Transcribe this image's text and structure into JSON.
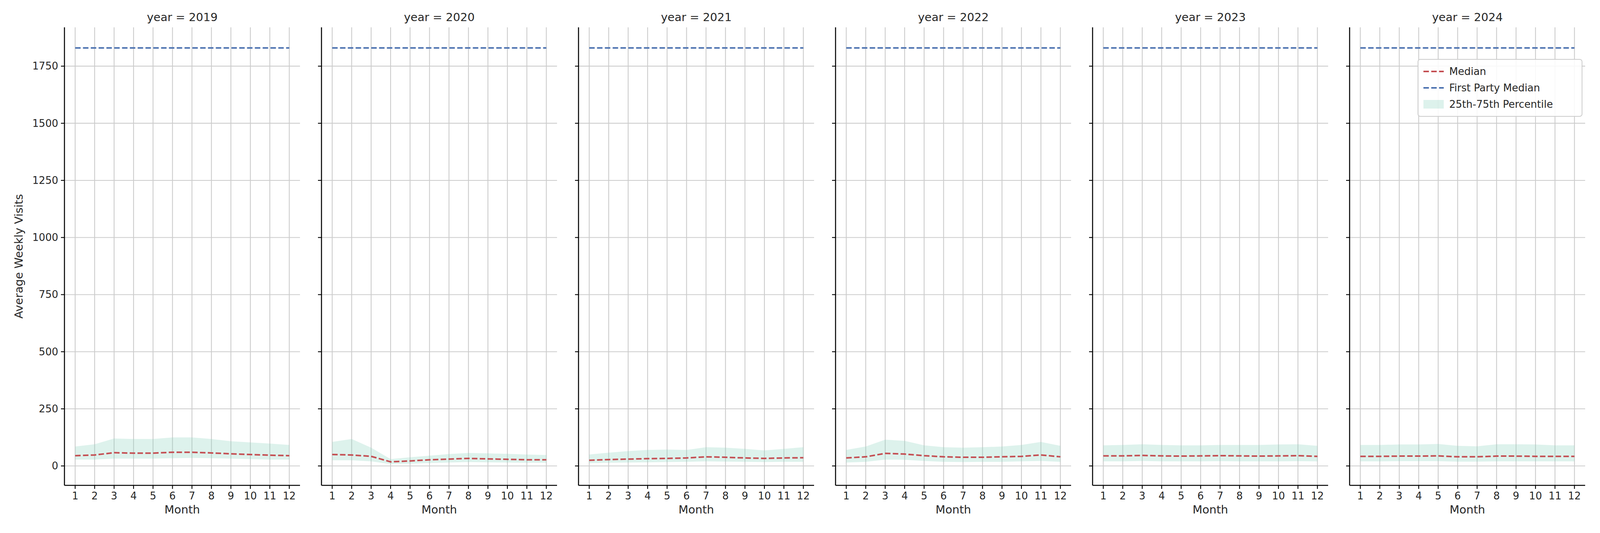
{
  "chart_data": [
    {
      "type": "line",
      "title": "year = 2019",
      "xlabel": "Month",
      "ylabel": "Average Weekly Visits",
      "x": [
        1,
        2,
        3,
        4,
        5,
        6,
        7,
        8,
        9,
        10,
        11,
        12
      ],
      "xlim": [
        0.45,
        12.55
      ],
      "xticks": [
        1,
        2,
        3,
        4,
        5,
        6,
        7,
        8,
        9,
        10,
        11,
        12
      ],
      "ylim": [
        -85,
        1920
      ],
      "yticks": [
        0,
        250,
        500,
        750,
        1000,
        1250,
        1500,
        1750
      ],
      "grid": true,
      "series": [
        {
          "name": "Median",
          "type": "line",
          "line_style": "dashed",
          "color": "#c44e52",
          "values": [
            45,
            48,
            58,
            56,
            56,
            60,
            60,
            57,
            53,
            50,
            47,
            45
          ]
        },
        {
          "name": "First Party Median",
          "type": "line",
          "line_style": "dashed",
          "color": "#4c72b0",
          "values": [
            1830,
            1830,
            1830,
            1830,
            1830,
            1830,
            1830,
            1830,
            1830,
            1830,
            1830,
            1830
          ]
        },
        {
          "name": "25th-75th Percentile",
          "type": "band",
          "color": "#8fd3c0",
          "lower": [
            28,
            28,
            32,
            32,
            32,
            34,
            35,
            34,
            32,
            30,
            28,
            28
          ],
          "upper": [
            85,
            95,
            120,
            118,
            118,
            125,
            125,
            118,
            108,
            103,
            98,
            92
          ]
        }
      ]
    },
    {
      "type": "line",
      "title": "year = 2020",
      "xlabel": "Month",
      "tick_labels": "x",
      "x": [
        1,
        2,
        3,
        4,
        5,
        6,
        7,
        8,
        9,
        10,
        11,
        12
      ],
      "xlim": [
        0.45,
        12.55
      ],
      "xticks": [
        1,
        2,
        3,
        4,
        5,
        6,
        7,
        8,
        9,
        10,
        11,
        12
      ],
      "ylim": [
        -85,
        1920
      ],
      "yticks": [
        0,
        250,
        500,
        750,
        1000,
        1250,
        1500,
        1750
      ],
      "grid": true,
      "series": [
        {
          "name": "Median",
          "type": "line",
          "line_style": "dashed",
          "color": "#c44e52",
          "values": [
            50,
            48,
            42,
            18,
            22,
            27,
            30,
            33,
            31,
            29,
            27,
            27
          ]
        },
        {
          "name": "First Party Median",
          "type": "line",
          "line_style": "dashed",
          "color": "#4c72b0",
          "values": [
            1830,
            1830,
            1830,
            1830,
            1830,
            1830,
            1830,
            1830,
            1830,
            1830,
            1830,
            1830
          ]
        },
        {
          "name": "25th-75th Percentile",
          "type": "band",
          "color": "#8fd3c0",
          "lower": [
            25,
            25,
            20,
            8,
            10,
            13,
            15,
            17,
            16,
            15,
            14,
            14
          ],
          "upper": [
            105,
            118,
            80,
            30,
            38,
            45,
            52,
            57,
            55,
            53,
            50,
            48
          ]
        }
      ]
    },
    {
      "type": "line",
      "title": "year = 2021",
      "xlabel": "Month",
      "tick_labels": "x",
      "x": [
        1,
        2,
        3,
        4,
        5,
        6,
        7,
        8,
        9,
        10,
        11,
        12
      ],
      "xlim": [
        0.45,
        12.55
      ],
      "xticks": [
        1,
        2,
        3,
        4,
        5,
        6,
        7,
        8,
        9,
        10,
        11,
        12
      ],
      "ylim": [
        -85,
        1920
      ],
      "yticks": [
        0,
        250,
        500,
        750,
        1000,
        1250,
        1500,
        1750
      ],
      "grid": true,
      "series": [
        {
          "name": "Median",
          "type": "line",
          "line_style": "dashed",
          "color": "#c44e52",
          "values": [
            25,
            28,
            30,
            32,
            33,
            35,
            40,
            38,
            35,
            33,
            35,
            36
          ]
        },
        {
          "name": "First Party Median",
          "type": "line",
          "line_style": "dashed",
          "color": "#4c72b0",
          "values": [
            1830,
            1830,
            1830,
            1830,
            1830,
            1830,
            1830,
            1830,
            1830,
            1830,
            1830,
            1830
          ]
        },
        {
          "name": "25th-75th Percentile",
          "type": "band",
          "color": "#8fd3c0",
          "lower": [
            12,
            14,
            15,
            16,
            17,
            18,
            20,
            19,
            18,
            17,
            18,
            18
          ],
          "upper": [
            50,
            58,
            65,
            70,
            72,
            70,
            82,
            80,
            75,
            68,
            75,
            82
          ]
        }
      ]
    },
    {
      "type": "line",
      "title": "year = 2022",
      "xlabel": "Month",
      "tick_labels": "x",
      "x": [
        1,
        2,
        3,
        4,
        5,
        6,
        7,
        8,
        9,
        10,
        11,
        12
      ],
      "xlim": [
        0.45,
        12.55
      ],
      "xticks": [
        1,
        2,
        3,
        4,
        5,
        6,
        7,
        8,
        9,
        10,
        11,
        12
      ],
      "ylim": [
        -85,
        1920
      ],
      "yticks": [
        0,
        250,
        500,
        750,
        1000,
        1250,
        1500,
        1750
      ],
      "grid": true,
      "series": [
        {
          "name": "Median",
          "type": "line",
          "line_style": "dashed",
          "color": "#c44e52",
          "values": [
            35,
            40,
            55,
            52,
            45,
            40,
            38,
            38,
            40,
            42,
            48,
            40
          ]
        },
        {
          "name": "First Party Median",
          "type": "line",
          "line_style": "dashed",
          "color": "#4c72b0",
          "values": [
            1830,
            1830,
            1830,
            1830,
            1830,
            1830,
            1830,
            1830,
            1830,
            1830,
            1830,
            1830
          ]
        },
        {
          "name": "25th-75th Percentile",
          "type": "band",
          "color": "#8fd3c0",
          "lower": [
            15,
            18,
            28,
            27,
            22,
            18,
            17,
            18,
            18,
            20,
            22,
            18
          ],
          "upper": [
            70,
            85,
            115,
            110,
            90,
            82,
            80,
            82,
            85,
            92,
            105,
            88
          ]
        }
      ]
    },
    {
      "type": "line",
      "title": "year = 2023",
      "xlabel": "Month",
      "tick_labels": "x",
      "x": [
        1,
        2,
        3,
        4,
        5,
        6,
        7,
        8,
        9,
        10,
        11,
        12
      ],
      "xlim": [
        0.45,
        12.55
      ],
      "xticks": [
        1,
        2,
        3,
        4,
        5,
        6,
        7,
        8,
        9,
        10,
        11,
        12
      ],
      "ylim": [
        -85,
        1920
      ],
      "yticks": [
        0,
        250,
        500,
        750,
        1000,
        1250,
        1500,
        1750
      ],
      "grid": true,
      "series": [
        {
          "name": "Median",
          "type": "line",
          "line_style": "dashed",
          "color": "#c44e52",
          "values": [
            44,
            44,
            46,
            44,
            43,
            44,
            45,
            44,
            43,
            44,
            45,
            42
          ]
        },
        {
          "name": "First Party Median",
          "type": "line",
          "line_style": "dashed",
          "color": "#4c72b0",
          "values": [
            1830,
            1830,
            1830,
            1830,
            1830,
            1830,
            1830,
            1830,
            1830,
            1830,
            1830,
            1830
          ]
        },
        {
          "name": "25th-75th Percentile",
          "type": "band",
          "color": "#8fd3c0",
          "lower": [
            20,
            20,
            22,
            20,
            20,
            20,
            21,
            20,
            20,
            20,
            21,
            20
          ],
          "upper": [
            90,
            92,
            95,
            92,
            90,
            90,
            92,
            92,
            92,
            94,
            95,
            88
          ]
        }
      ]
    },
    {
      "type": "line",
      "title": "year = 2024",
      "xlabel": "Month",
      "tick_labels": "x",
      "legend": "upper right",
      "x": [
        1,
        2,
        3,
        4,
        5,
        6,
        7,
        8,
        9,
        10,
        11,
        12
      ],
      "xlim": [
        0.45,
        12.55
      ],
      "xticks": [
        1,
        2,
        3,
        4,
        5,
        6,
        7,
        8,
        9,
        10,
        11,
        12
      ],
      "ylim": [
        -85,
        1920
      ],
      "yticks": [
        0,
        250,
        500,
        750,
        1000,
        1250,
        1500,
        1750
      ],
      "grid": true,
      "series": [
        {
          "name": "Median",
          "type": "line",
          "line_style": "dashed",
          "color": "#c44e52",
          "values": [
            42,
            42,
            43,
            43,
            44,
            40,
            40,
            43,
            43,
            42,
            42,
            42
          ]
        },
        {
          "name": "First Party Median",
          "type": "line",
          "line_style": "dashed",
          "color": "#4c72b0",
          "values": [
            1830,
            1830,
            1830,
            1830,
            1830,
            1830,
            1830,
            1830,
            1830,
            1830,
            1830,
            1830
          ]
        },
        {
          "name": "25th-75th Percentile",
          "type": "band",
          "color": "#8fd3c0",
          "lower": [
            20,
            20,
            21,
            21,
            21,
            19,
            19,
            20,
            20,
            20,
            20,
            20
          ],
          "upper": [
            92,
            92,
            94,
            94,
            96,
            88,
            86,
            95,
            95,
            94,
            90,
            90
          ]
        }
      ]
    }
  ]
}
